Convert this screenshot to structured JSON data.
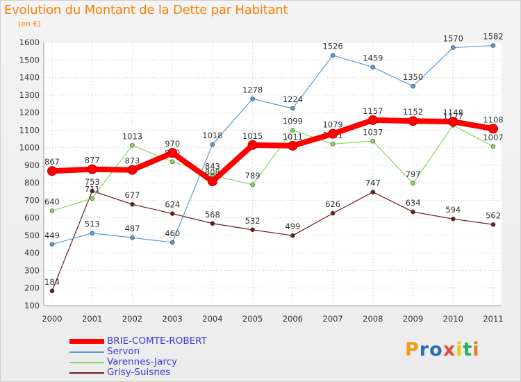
{
  "header": {
    "title": "Evolution du Montant de la Dette par Habitant",
    "subtitle": "(en €)"
  },
  "logo": {
    "letters": [
      "P",
      "r",
      "o",
      "x",
      "i",
      "t",
      "i"
    ],
    "colors": [
      "#f39c12",
      "#2a6db5",
      "#2a6db5",
      "#e74c3c",
      "#f1c40f",
      "#27ae60",
      "#e67e22"
    ]
  },
  "chart_data": {
    "type": "line",
    "title": "Evolution du Montant de la Dette par Habitant",
    "ylabel": "(en €)",
    "xlabel": "",
    "x": [
      "2000",
      "2001",
      "2002",
      "2003",
      "2004",
      "2005",
      "2006",
      "2007",
      "2008",
      "2009",
      "2010",
      "2011"
    ],
    "ylim": [
      100,
      1600
    ],
    "yticks": [
      100,
      200,
      300,
      400,
      500,
      600,
      700,
      800,
      900,
      1000,
      1100,
      1200,
      1300,
      1400,
      1500,
      1600
    ],
    "grid": true,
    "legend_position": "bottom-left",
    "series": [
      {
        "name": "Grisy-Suisnes",
        "color": "#6b1a1a",
        "values": [
          184,
          753,
          677,
          624,
          568,
          532,
          499,
          626,
          747,
          634,
          594,
          562
        ]
      },
      {
        "name": "Varennes-Jarcy",
        "color": "#8bd65a",
        "values": [
          640,
          711,
          1013,
          920,
          843,
          789,
          1099,
          1021,
          1037,
          797,
          1127,
          1007
        ]
      },
      {
        "name": "Servon",
        "color": "#5b9bd5",
        "values": [
          449,
          513,
          487,
          460,
          1018,
          1278,
          1224,
          1526,
          1459,
          1350,
          1570,
          1582
        ]
      },
      {
        "name": "BRIE-COMTE-ROBERT",
        "color": "#ff0000",
        "values": [
          867,
          877,
          873,
          970,
          808,
          1015,
          1011,
          1079,
          1157,
          1152,
          1148,
          1108
        ]
      }
    ],
    "legend_order": [
      "BRIE-COMTE-ROBERT",
      "Servon",
      "Varennes-Jarcy",
      "Grisy-Suisnes"
    ]
  }
}
